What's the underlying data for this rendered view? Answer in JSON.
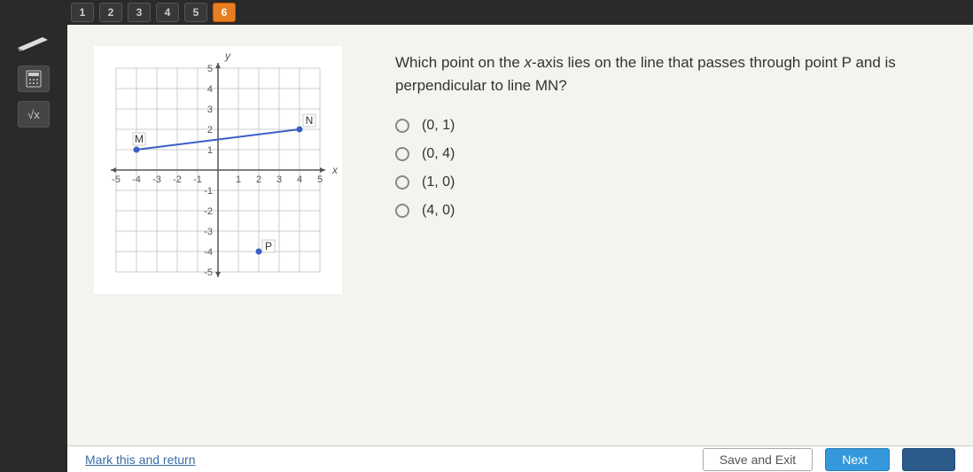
{
  "pages": {
    "items": [
      "1",
      "2",
      "3",
      "4",
      "5",
      "6"
    ],
    "active_index": 5,
    "active_bg": "#e67e22",
    "inactive_bg": "#383838"
  },
  "tools": {
    "pencil": "pencil-icon",
    "calculator": "calculator-icon",
    "sqrt": "√x"
  },
  "graph": {
    "xlim": [
      -5,
      5
    ],
    "ylim": [
      -5,
      5
    ],
    "tick_step": 1,
    "xlabel": "x",
    "ylabel": "y",
    "grid_color": "#cccccc",
    "axis_color": "#555555",
    "line_color": "#3b5fc4",
    "point_color": "#3b5fc4",
    "background_color": "#ffffff",
    "label_fontsize": 11,
    "points": {
      "M": {
        "x": -4,
        "y": 1,
        "label_dx": -2,
        "label_dy": -8
      },
      "N": {
        "x": 4,
        "y": 2,
        "label_dx": 6,
        "label_dy": -6
      },
      "P": {
        "x": 2,
        "y": -4,
        "label_dx": 6,
        "label_dy": -2
      }
    },
    "line": {
      "from": "M",
      "to": "N"
    }
  },
  "question": {
    "text_parts": [
      "Which point on the ",
      "x",
      "-axis lies on the line that passes through point P and is perpendicular to line MN?"
    ]
  },
  "answers": {
    "options": [
      "(0, 1)",
      "(0, 4)",
      "(1, 0)",
      "(4, 0)"
    ]
  },
  "footer": {
    "mark_return": "Mark this and return",
    "save_exit": "Save and Exit",
    "next": "Next"
  },
  "colors": {
    "page_bg": "#f5f3ef",
    "sidebar_bg": "#2a2a2a",
    "question_text": "#333333",
    "link": "#3a6ea5",
    "btn_next_bg": "#3498db",
    "btn_submit_bg": "#2c5a8a"
  }
}
